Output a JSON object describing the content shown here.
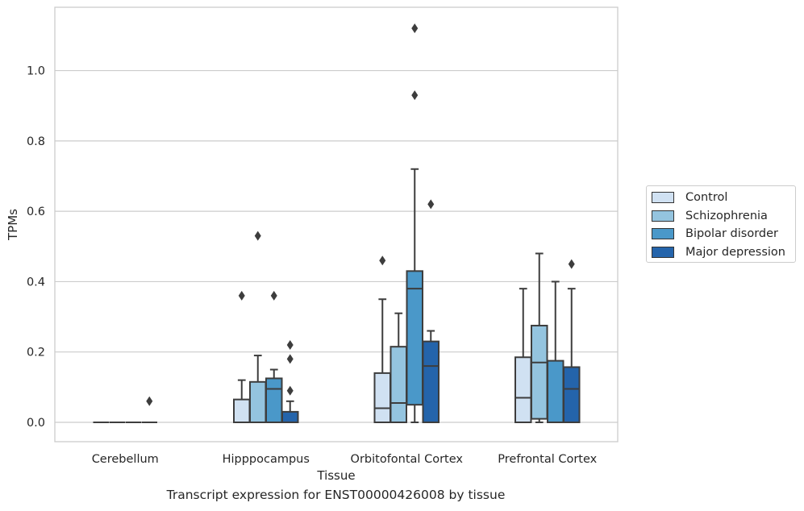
{
  "caption": "Transcript expression for ENST00000426008 by tissue",
  "chart_data": {
    "type": "box",
    "xlabel": "Tissue",
    "ylabel": "TPMs",
    "ylim": [
      -0.055,
      1.18
    ],
    "yticks": [
      0.0,
      0.2,
      0.4,
      0.6,
      0.8,
      1.0
    ],
    "ytick_labels": [
      "0.0",
      "0.2",
      "0.4",
      "0.6",
      "0.8",
      "1.0"
    ],
    "grid": "horizontal",
    "legend_position": "right",
    "categories": [
      "Cerebellum",
      "Hipppocampus",
      "Orbitofontal Cortex",
      "Prefrontal Cortex"
    ],
    "series": [
      {
        "name": "Control",
        "color": "#d0e1f2",
        "boxes": [
          {
            "whislo": 0.0,
            "q1": 0.0,
            "med": 0.0,
            "q3": 0.0,
            "whishi": 0.0,
            "fliers": []
          },
          {
            "whislo": 0.0,
            "q1": 0.0,
            "med": 0.0,
            "q3": 0.065,
            "whishi": 0.12,
            "fliers": [
              0.36
            ]
          },
          {
            "whislo": 0.0,
            "q1": 0.0,
            "med": 0.04,
            "q3": 0.14,
            "whishi": 0.35,
            "fliers": [
              0.46
            ]
          },
          {
            "whislo": 0.0,
            "q1": 0.0,
            "med": 0.07,
            "q3": 0.185,
            "whishi": 0.38,
            "fliers": []
          }
        ]
      },
      {
        "name": "Schizophrenia",
        "color": "#94c4df",
        "boxes": [
          {
            "whislo": 0.0,
            "q1": 0.0,
            "med": 0.0,
            "q3": 0.0,
            "whishi": 0.0,
            "fliers": []
          },
          {
            "whislo": 0.0,
            "q1": 0.0,
            "med": 0.0,
            "q3": 0.115,
            "whishi": 0.19,
            "fliers": [
              0.53
            ]
          },
          {
            "whislo": 0.0,
            "q1": 0.0,
            "med": 0.055,
            "q3": 0.215,
            "whishi": 0.31,
            "fliers": []
          },
          {
            "whislo": 0.0,
            "q1": 0.01,
            "med": 0.17,
            "q3": 0.275,
            "whishi": 0.48,
            "fliers": []
          }
        ]
      },
      {
        "name": "Bipolar disorder",
        "color": "#4a98c9",
        "boxes": [
          {
            "whislo": 0.0,
            "q1": 0.0,
            "med": 0.0,
            "q3": 0.0,
            "whishi": 0.0,
            "fliers": []
          },
          {
            "whislo": 0.0,
            "q1": 0.0,
            "med": 0.095,
            "q3": 0.125,
            "whishi": 0.15,
            "fliers": [
              0.36
            ]
          },
          {
            "whislo": 0.0,
            "q1": 0.05,
            "med": 0.38,
            "q3": 0.43,
            "whishi": 0.72,
            "fliers": [
              1.12,
              0.93
            ]
          },
          {
            "whislo": 0.0,
            "q1": 0.0,
            "med": 0.0,
            "q3": 0.175,
            "whishi": 0.4,
            "fliers": []
          }
        ]
      },
      {
        "name": "Major depression",
        "color": "#2464ab",
        "boxes": [
          {
            "whislo": 0.0,
            "q1": 0.0,
            "med": 0.0,
            "q3": 0.0,
            "whishi": 0.0,
            "fliers": [
              0.06
            ]
          },
          {
            "whislo": 0.0,
            "q1": 0.0,
            "med": 0.0,
            "q3": 0.03,
            "whishi": 0.06,
            "fliers": [
              0.22,
              0.18,
              0.09
            ]
          },
          {
            "whislo": 0.0,
            "q1": 0.0,
            "med": 0.16,
            "q3": 0.23,
            "whishi": 0.26,
            "fliers": [
              0.62
            ]
          },
          {
            "whislo": 0.0,
            "q1": 0.0,
            "med": 0.095,
            "q3": 0.157,
            "whishi": 0.38,
            "fliers": [
              0.45
            ]
          }
        ]
      }
    ]
  }
}
